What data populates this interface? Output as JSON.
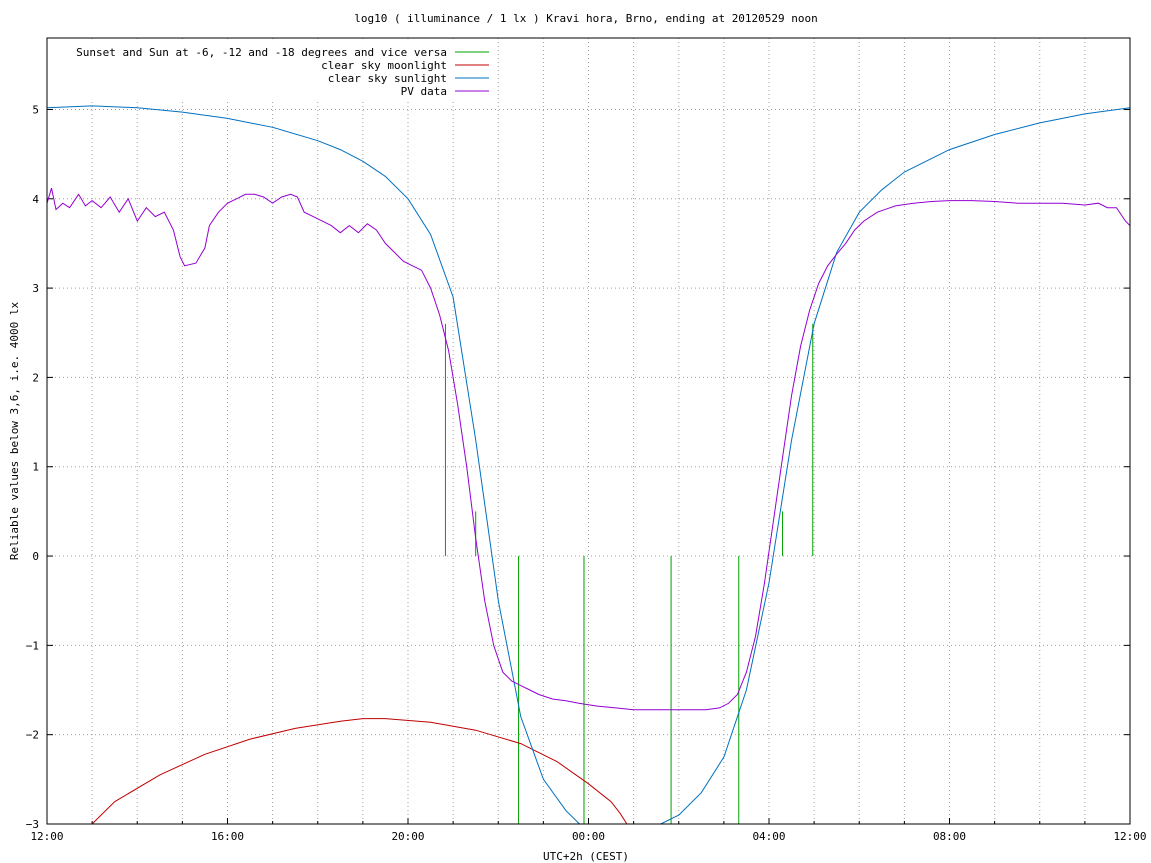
{
  "chart_data": {
    "type": "line",
    "title": "log10 ( illuminance / 1 lx ) Kravi hora, Brno, ending at 20120529 noon",
    "xlabel": "UTC+2h (CEST)",
    "ylabel": "Reliable values below 3,6, i.e. 4000 lx",
    "xlim_hours": [
      12,
      36
    ],
    "ylim": [
      -3,
      5.8
    ],
    "x_ticks": [
      {
        "hour": 12,
        "label": "12:00"
      },
      {
        "hour": 16,
        "label": "16:00"
      },
      {
        "hour": 20,
        "label": "20:00"
      },
      {
        "hour": 24,
        "label": "00:00"
      },
      {
        "hour": 28,
        "label": "04:00"
      },
      {
        "hour": 32,
        "label": "08:00"
      },
      {
        "hour": 36,
        "label": "12:00"
      }
    ],
    "y_ticks": [
      {
        "value": -3,
        "label": "−3"
      },
      {
        "value": -2,
        "label": "−2"
      },
      {
        "value": -1,
        "label": "−1"
      },
      {
        "value": 0,
        "label": "0"
      },
      {
        "value": 1,
        "label": "1"
      },
      {
        "value": 2,
        "label": "2"
      },
      {
        "value": 3,
        "label": "3"
      },
      {
        "value": 4,
        "label": "4"
      },
      {
        "value": 5,
        "label": "5"
      }
    ],
    "grid": true,
    "legend_position": "top-left",
    "series": [
      {
        "name": "Sunset and Sun at -6, -12 and -18 degrees and vice versa",
        "color": "#00a000",
        "style": "impulses",
        "impulses": [
          {
            "hour": 20.83,
            "from": 0,
            "to": 2.6
          },
          {
            "hour": 21.5,
            "from": 0,
            "to": 0.5
          },
          {
            "hour": 22.45,
            "from": -3,
            "to": 0
          },
          {
            "hour": 23.9,
            "from": -3,
            "to": 0
          },
          {
            "hour": 25.83,
            "from": -3,
            "to": 0
          },
          {
            "hour": 27.33,
            "from": -3,
            "to": 0
          },
          {
            "hour": 28.3,
            "from": 0,
            "to": 0.5
          },
          {
            "hour": 28.97,
            "from": 0,
            "to": 2.6
          }
        ]
      },
      {
        "name": "clear sky moonlight",
        "color": "#c00000",
        "points": [
          [
            13.0,
            -3.0
          ],
          [
            13.5,
            -2.75
          ],
          [
            14.5,
            -2.45
          ],
          [
            15.5,
            -2.22
          ],
          [
            16.5,
            -2.05
          ],
          [
            17.5,
            -1.93
          ],
          [
            18.5,
            -1.85
          ],
          [
            19.0,
            -1.82
          ],
          [
            19.5,
            -1.82
          ],
          [
            20.5,
            -1.86
          ],
          [
            21.5,
            -1.95
          ],
          [
            22.5,
            -2.1
          ],
          [
            23.3,
            -2.3
          ],
          [
            24.0,
            -2.55
          ],
          [
            24.5,
            -2.75
          ],
          [
            24.7,
            -2.88
          ],
          [
            24.85,
            -3.0
          ]
        ]
      },
      {
        "name": "clear sky sunlight",
        "color": "#0070c0",
        "points": [
          [
            12.0,
            5.02
          ],
          [
            13.0,
            5.04
          ],
          [
            14.0,
            5.02
          ],
          [
            15.0,
            4.97
          ],
          [
            16.0,
            4.9
          ],
          [
            17.0,
            4.8
          ],
          [
            18.0,
            4.65
          ],
          [
            18.5,
            4.55
          ],
          [
            19.0,
            4.42
          ],
          [
            19.5,
            4.25
          ],
          [
            20.0,
            4.0
          ],
          [
            20.5,
            3.6
          ],
          [
            21.0,
            2.9
          ],
          [
            21.5,
            1.3
          ],
          [
            22.0,
            -0.5
          ],
          [
            22.5,
            -1.8
          ],
          [
            23.0,
            -2.5
          ],
          [
            23.5,
            -2.85
          ],
          [
            23.8,
            -3.0
          ],
          [
            25.6,
            -3.0
          ],
          [
            26.0,
            -2.9
          ],
          [
            26.5,
            -2.65
          ],
          [
            27.0,
            -2.25
          ],
          [
            27.5,
            -1.5
          ],
          [
            28.0,
            -0.3
          ],
          [
            28.5,
            1.3
          ],
          [
            29.0,
            2.6
          ],
          [
            29.5,
            3.4
          ],
          [
            30.0,
            3.85
          ],
          [
            30.5,
            4.1
          ],
          [
            31.0,
            4.3
          ],
          [
            32.0,
            4.55
          ],
          [
            33.0,
            4.72
          ],
          [
            34.0,
            4.85
          ],
          [
            35.0,
            4.95
          ],
          [
            36.0,
            5.02
          ]
        ]
      },
      {
        "name": "PV data",
        "color": "#9400d3",
        "points": [
          [
            12.0,
            3.95
          ],
          [
            12.1,
            4.12
          ],
          [
            12.2,
            3.88
          ],
          [
            12.35,
            3.95
          ],
          [
            12.5,
            3.9
          ],
          [
            12.7,
            4.05
          ],
          [
            12.85,
            3.92
          ],
          [
            13.0,
            3.98
          ],
          [
            13.2,
            3.9
          ],
          [
            13.4,
            4.02
          ],
          [
            13.6,
            3.85
          ],
          [
            13.8,
            4.0
          ],
          [
            14.0,
            3.75
          ],
          [
            14.2,
            3.9
          ],
          [
            14.4,
            3.8
          ],
          [
            14.6,
            3.85
          ],
          [
            14.8,
            3.65
          ],
          [
            14.95,
            3.35
          ],
          [
            15.05,
            3.25
          ],
          [
            15.3,
            3.28
          ],
          [
            15.5,
            3.45
          ],
          [
            15.6,
            3.7
          ],
          [
            15.8,
            3.85
          ],
          [
            16.0,
            3.95
          ],
          [
            16.2,
            4.0
          ],
          [
            16.4,
            4.05
          ],
          [
            16.6,
            4.05
          ],
          [
            16.8,
            4.02
          ],
          [
            17.0,
            3.95
          ],
          [
            17.2,
            4.02
          ],
          [
            17.4,
            4.05
          ],
          [
            17.55,
            4.02
          ],
          [
            17.7,
            3.85
          ],
          [
            17.9,
            3.8
          ],
          [
            18.1,
            3.75
          ],
          [
            18.3,
            3.7
          ],
          [
            18.5,
            3.62
          ],
          [
            18.7,
            3.7
          ],
          [
            18.9,
            3.62
          ],
          [
            19.1,
            3.72
          ],
          [
            19.3,
            3.65
          ],
          [
            19.5,
            3.5
          ],
          [
            19.7,
            3.4
          ],
          [
            19.9,
            3.3
          ],
          [
            20.1,
            3.25
          ],
          [
            20.3,
            3.2
          ],
          [
            20.5,
            3.0
          ],
          [
            20.7,
            2.7
          ],
          [
            20.9,
            2.3
          ],
          [
            21.1,
            1.7
          ],
          [
            21.3,
            1.0
          ],
          [
            21.5,
            0.2
          ],
          [
            21.7,
            -0.5
          ],
          [
            21.9,
            -1.0
          ],
          [
            22.1,
            -1.3
          ],
          [
            22.3,
            -1.4
          ],
          [
            22.5,
            -1.45
          ],
          [
            22.7,
            -1.5
          ],
          [
            22.9,
            -1.55
          ],
          [
            23.2,
            -1.6
          ],
          [
            23.5,
            -1.62
          ],
          [
            23.8,
            -1.65
          ],
          [
            24.2,
            -1.68
          ],
          [
            24.6,
            -1.7
          ],
          [
            25.0,
            -1.72
          ],
          [
            25.4,
            -1.72
          ],
          [
            25.8,
            -1.72
          ],
          [
            26.2,
            -1.72
          ],
          [
            26.6,
            -1.72
          ],
          [
            26.9,
            -1.7
          ],
          [
            27.1,
            -1.65
          ],
          [
            27.3,
            -1.55
          ],
          [
            27.5,
            -1.3
          ],
          [
            27.7,
            -0.9
          ],
          [
            27.9,
            -0.3
          ],
          [
            28.1,
            0.4
          ],
          [
            28.3,
            1.1
          ],
          [
            28.5,
            1.8
          ],
          [
            28.7,
            2.35
          ],
          [
            28.9,
            2.75
          ],
          [
            29.1,
            3.05
          ],
          [
            29.3,
            3.25
          ],
          [
            29.5,
            3.38
          ],
          [
            29.7,
            3.5
          ],
          [
            29.9,
            3.65
          ],
          [
            30.1,
            3.75
          ],
          [
            30.4,
            3.85
          ],
          [
            30.8,
            3.92
          ],
          [
            31.2,
            3.95
          ],
          [
            31.6,
            3.97
          ],
          [
            32.0,
            3.98
          ],
          [
            32.5,
            3.98
          ],
          [
            33.0,
            3.97
          ],
          [
            33.5,
            3.95
          ],
          [
            34.0,
            3.95
          ],
          [
            34.5,
            3.95
          ],
          [
            35.0,
            3.93
          ],
          [
            35.3,
            3.95
          ],
          [
            35.5,
            3.9
          ],
          [
            35.7,
            3.9
          ],
          [
            35.9,
            3.75
          ],
          [
            36.0,
            3.7
          ]
        ]
      }
    ]
  }
}
